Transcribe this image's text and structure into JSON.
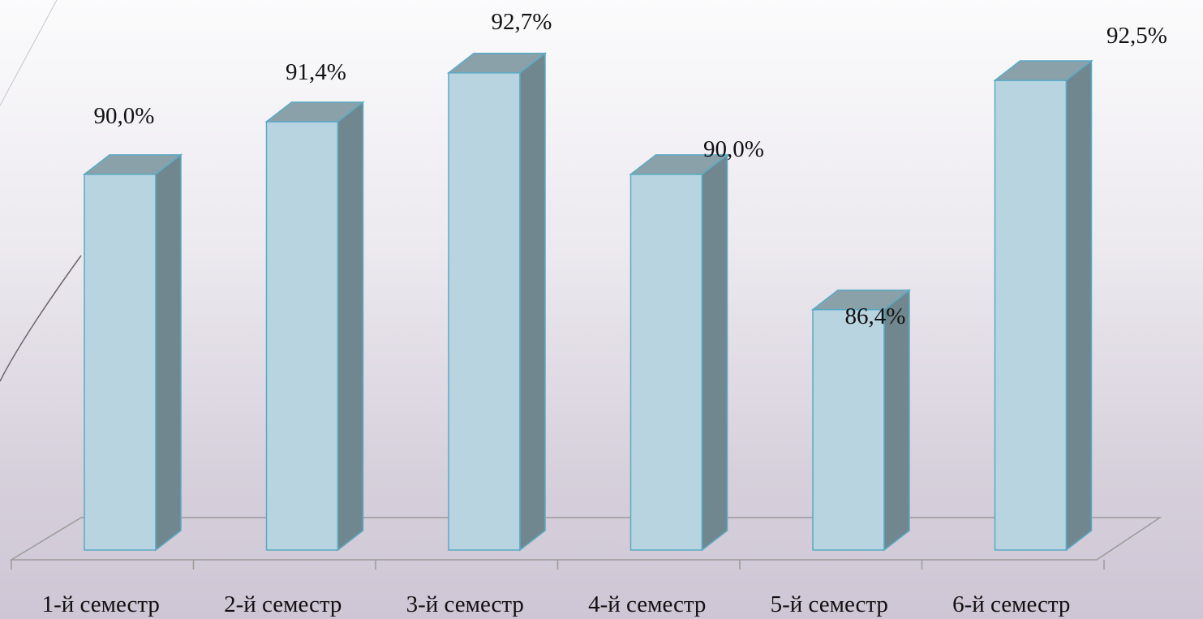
{
  "chart_data": {
    "type": "bar",
    "title": "",
    "xlabel": "",
    "ylabel": "",
    "categories": [
      "1-й семестр",
      "2-й семестр",
      "3-й семестр",
      "4-й семестр",
      "5-й семестр",
      "6-й семестр"
    ],
    "values": [
      90.0,
      91.4,
      92.7,
      90.0,
      86.4,
      92.5
    ],
    "value_labels": [
      "90,0%",
      "91,4%",
      "92,7%",
      "90,0%",
      "86,4%",
      "92,5%"
    ],
    "unit": "%",
    "style": "3d-column",
    "grid": false,
    "legend": "none",
    "colors": {
      "bar_front": "#b8d4e1",
      "bar_side": "#71878f",
      "bar_top": "#8aa1aa",
      "bar_edge": "#5aaac4",
      "floor_line": "#9a9a9a"
    }
  }
}
